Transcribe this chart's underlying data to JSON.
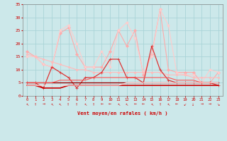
{
  "bg_color": "#cce8ea",
  "grid_color": "#aad4d8",
  "xlabel": "Vent moyen/en rafales ( km/h )",
  "xlabel_color": "#cc0000",
  "tick_color": "#cc0000",
  "xmin": -0.5,
  "xmax": 23.5,
  "ymin": 0,
  "ymax": 35,
  "yticks": [
    0,
    5,
    10,
    15,
    20,
    25,
    30,
    35
  ],
  "xticks": [
    0,
    1,
    2,
    3,
    4,
    5,
    6,
    7,
    8,
    9,
    10,
    11,
    12,
    13,
    14,
    15,
    16,
    17,
    18,
    19,
    20,
    21,
    22,
    23
  ],
  "series": [
    {
      "comment": "light pink diagonal line top-left to bottom-right, with diamond markers",
      "color": "#ffaaaa",
      "linewidth": 0.8,
      "marker": "D",
      "markersize": 2.0,
      "y": [
        17,
        15,
        12,
        11,
        24,
        26,
        16,
        11,
        11,
        11,
        17,
        25,
        19,
        25,
        8,
        16,
        33,
        10,
        9,
        9,
        9,
        5,
        5,
        9
      ]
    },
    {
      "comment": "lighter pink line with star markers, big peaks at 15-16",
      "color": "#ffcccc",
      "linewidth": 0.8,
      "marker": "*",
      "markersize": 3.0,
      "y": [
        15,
        15,
        12,
        11,
        25,
        27,
        20,
        11,
        11,
        17,
        11,
        25,
        28,
        22,
        9,
        15,
        33,
        27,
        9,
        8,
        8,
        5,
        10,
        9
      ]
    },
    {
      "comment": "medium pink diagonal declining line",
      "color": "#ffbbbb",
      "linewidth": 0.8,
      "marker": "D",
      "markersize": 1.5,
      "y": [
        16,
        15,
        14,
        13,
        12,
        11,
        10,
        10,
        9,
        9,
        9,
        9,
        9,
        9,
        9,
        9,
        9,
        8,
        8,
        8,
        7,
        7,
        7,
        7
      ]
    },
    {
      "comment": "red line with + markers, spike at 15",
      "color": "#dd3333",
      "linewidth": 0.9,
      "marker": "+",
      "markersize": 3.0,
      "y": [
        5,
        5,
        3,
        11,
        9,
        7,
        3,
        7,
        7,
        9,
        14,
        14,
        7,
        7,
        5,
        19,
        10,
        6,
        5,
        5,
        5,
        5,
        5,
        4
      ]
    },
    {
      "comment": "dark red flat line around 4-5",
      "color": "#990000",
      "linewidth": 1.0,
      "marker": null,
      "markersize": 0,
      "y": [
        5,
        5,
        5,
        5,
        5,
        5,
        5,
        5,
        5,
        5,
        5,
        5,
        5,
        5,
        5,
        5,
        5,
        5,
        5,
        5,
        5,
        5,
        5,
        5
      ]
    },
    {
      "comment": "red flat line around 3-4",
      "color": "#cc0000",
      "linewidth": 1.2,
      "marker": null,
      "markersize": 0,
      "y": [
        4,
        4,
        3,
        3,
        3,
        4,
        4,
        4,
        4,
        4,
        4,
        4,
        4,
        4,
        4,
        4,
        4,
        4,
        4,
        4,
        4,
        4,
        4,
        4
      ]
    },
    {
      "comment": "medium red gentle slope",
      "color": "#ff5555",
      "linewidth": 0.8,
      "marker": null,
      "markersize": 0,
      "y": [
        5,
        5,
        5,
        5,
        6,
        6,
        6,
        6,
        7,
        7,
        7,
        7,
        7,
        7,
        7,
        7,
        7,
        7,
        6,
        6,
        6,
        5,
        5,
        5
      ]
    },
    {
      "comment": "faint pink bottom line",
      "color": "#ffdddd",
      "linewidth": 0.8,
      "marker": null,
      "markersize": 0,
      "y": [
        4,
        4,
        4,
        4,
        4,
        4,
        4,
        4,
        4,
        4,
        4,
        4,
        5,
        5,
        5,
        5,
        5,
        5,
        5,
        5,
        5,
        5,
        5,
        5
      ]
    }
  ],
  "wind_arrows": [
    "↖",
    "↑",
    "→",
    "↖",
    "↖",
    "↑",
    "↑",
    "↖",
    "↑",
    "←",
    "←",
    "↖",
    "↖",
    "←",
    "←",
    "↖",
    "↑",
    "↖",
    "←",
    "↙",
    "↓",
    "→",
    "→",
    "↘"
  ]
}
